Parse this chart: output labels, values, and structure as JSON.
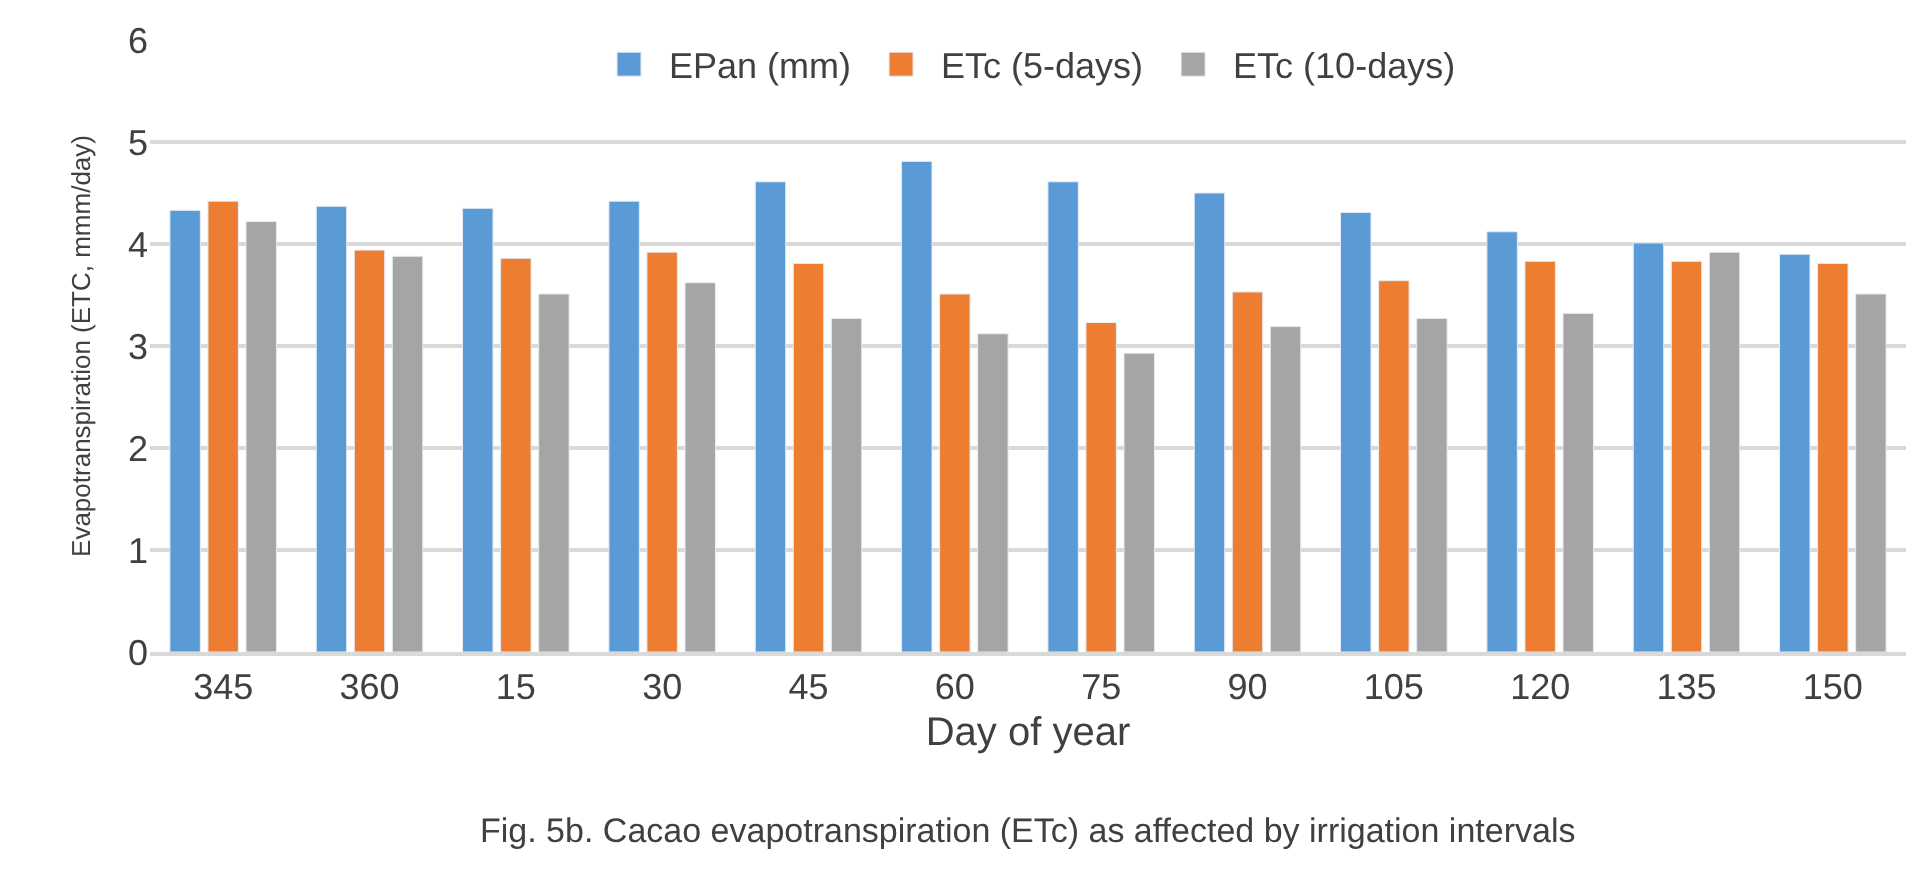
{
  "chart_data": {
    "type": "bar",
    "xlabel": "Day of year",
    "ylabel": "Evapotranspiration (ETC, mmm/day)",
    "categories": [
      "345",
      "360",
      "15",
      "30",
      "45",
      "60",
      "75",
      "90",
      "105",
      "120",
      "135",
      "150"
    ],
    "series": [
      {
        "name": "EPan (mm)",
        "color": "#5b9bd5",
        "values": [
          4.33,
          4.37,
          4.35,
          4.42,
          4.61,
          4.81,
          4.61,
          4.5,
          4.31,
          4.12,
          4.01,
          3.9
        ]
      },
      {
        "name": "ETc (5-days)",
        "color": "#ed7d31",
        "values": [
          4.42,
          3.94,
          3.86,
          3.92,
          3.81,
          3.51,
          3.23,
          3.53,
          3.64,
          3.83,
          3.83,
          3.81
        ]
      },
      {
        "name": "ETc (10-days)",
        "color": "#a5a5a5",
        "values": [
          4.22,
          3.88,
          3.51,
          3.62,
          3.27,
          3.12,
          2.93,
          3.19,
          3.27,
          3.32,
          3.92,
          3.51
        ]
      }
    ],
    "ylim": [
      0,
      6
    ],
    "yticks": [
      0,
      1,
      2,
      3,
      4,
      5,
      6
    ],
    "grid": "y",
    "legend": "top",
    "annotations": [
      "Fig. 5b. Cacao evapotranspiration (ETc) as affected by irrigation intervals"
    ]
  }
}
